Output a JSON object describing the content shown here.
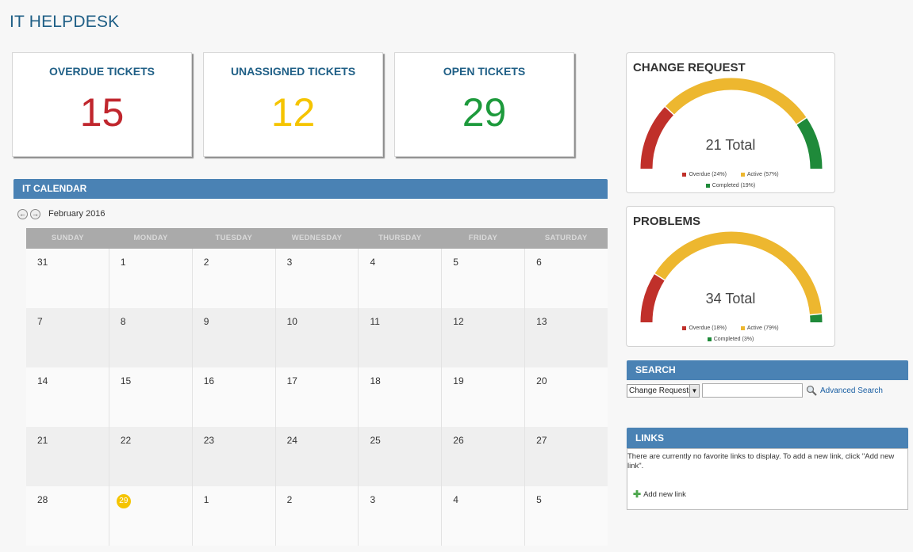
{
  "page_title": "IT HELPDESK",
  "kpis": [
    {
      "label": "OVERDUE TICKETS",
      "value": "15",
      "color": "#c0262d"
    },
    {
      "label": "UNASSIGNED TICKETS",
      "value": "12",
      "color": "#f5c400"
    },
    {
      "label": "OPEN TICKETS",
      "value": "29",
      "color": "#1d9a3c"
    }
  ],
  "calendar": {
    "header": "IT CALENDAR",
    "month": "February 2016",
    "days": [
      "SUNDAY",
      "MONDAY",
      "TUESDAY",
      "WEDNESDAY",
      "THURSDAY",
      "FRIDAY",
      "SATURDAY"
    ],
    "weeks": [
      [
        "31",
        "1",
        "2",
        "3",
        "4",
        "5",
        "6"
      ],
      [
        "7",
        "8",
        "9",
        "10",
        "11",
        "12",
        "13"
      ],
      [
        "14",
        "15",
        "16",
        "17",
        "18",
        "19",
        "20"
      ],
      [
        "21",
        "22",
        "23",
        "24",
        "25",
        "26",
        "27"
      ],
      [
        "28",
        "29",
        "1",
        "2",
        "3",
        "4",
        "5"
      ]
    ],
    "today": "29",
    "today_color": "#f5c400"
  },
  "change_request": {
    "title": "CHANGE REQUEST",
    "total": "21 Total",
    "segments": [
      {
        "label": "Overdue (24%)",
        "percent": 24,
        "color": "#c0302a"
      },
      {
        "label": "Active (57%)",
        "percent": 57,
        "color": "#edb72f"
      },
      {
        "label": "Completed (19%)",
        "percent": 19,
        "color": "#1f8a3a"
      }
    ]
  },
  "problems": {
    "title": "PROBLEMS",
    "total": "34 Total",
    "segments": [
      {
        "label": "Overdue (18%)",
        "percent": 18,
        "color": "#c0302a"
      },
      {
        "label": "Active (79%)",
        "percent": 79,
        "color": "#edb72f"
      },
      {
        "label": "Completed (3%)",
        "percent": 3,
        "color": "#1f8a3a"
      }
    ]
  },
  "search": {
    "header": "SEARCH",
    "selected": "Change Requests",
    "query": "",
    "advanced": "Advanced Search"
  },
  "links": {
    "header": "LINKS",
    "message": "There are currently no favorite links to display. To add a new link, click \"Add new link\".",
    "add": "Add new link"
  }
}
